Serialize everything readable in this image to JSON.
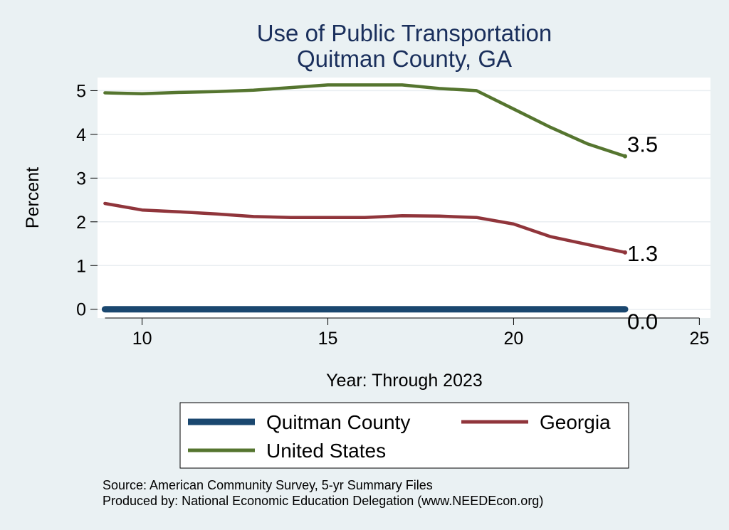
{
  "chart_data": {
    "type": "line",
    "title": "Use of Public Transportation",
    "subtitle": "Quitman County, GA",
    "xlabel": "Year: Through 2023",
    "ylabel": "Percent",
    "xlim": [
      8.8,
      25.3
    ],
    "ylim": [
      -0.2,
      5.3
    ],
    "xticks": [
      10,
      15,
      20,
      25
    ],
    "yticks": [
      0,
      1,
      2,
      3,
      4,
      5
    ],
    "grid": true,
    "legend_position": "bottom",
    "series": [
      {
        "name": "Quitman County",
        "color": "#1a476f",
        "x": [
          9,
          10,
          11,
          12,
          13,
          14,
          15,
          16,
          17,
          18,
          19,
          20,
          21,
          22,
          23
        ],
        "values": [
          0,
          0,
          0,
          0,
          0,
          0,
          0,
          0,
          0,
          0,
          0,
          0,
          0,
          0,
          0
        ],
        "end_label": "0.0"
      },
      {
        "name": "Georgia",
        "color": "#90353b",
        "x": [
          9,
          10,
          11,
          12,
          13,
          14,
          15,
          16,
          17,
          18,
          19,
          20,
          21,
          22,
          23
        ],
        "values": [
          2.42,
          2.27,
          2.23,
          2.18,
          2.12,
          2.1,
          2.1,
          2.1,
          2.14,
          2.13,
          2.1,
          1.95,
          1.66,
          1.48,
          1.3
        ],
        "end_label": "1.3"
      },
      {
        "name": "United States",
        "color": "#55752f",
        "x": [
          9,
          10,
          11,
          12,
          13,
          14,
          15,
          16,
          17,
          18,
          19,
          20,
          21,
          22,
          23
        ],
        "values": [
          4.95,
          4.93,
          4.96,
          4.98,
          5.01,
          5.07,
          5.13,
          5.13,
          5.13,
          5.05,
          5.0,
          4.58,
          4.16,
          3.78,
          3.5
        ],
        "end_label": "3.5"
      }
    ],
    "notes": [
      "Source: American Community Survey, 5-yr Summary Files",
      "Produced by: National Economic Education Delegation (www.NEEDEcon.org)"
    ]
  }
}
